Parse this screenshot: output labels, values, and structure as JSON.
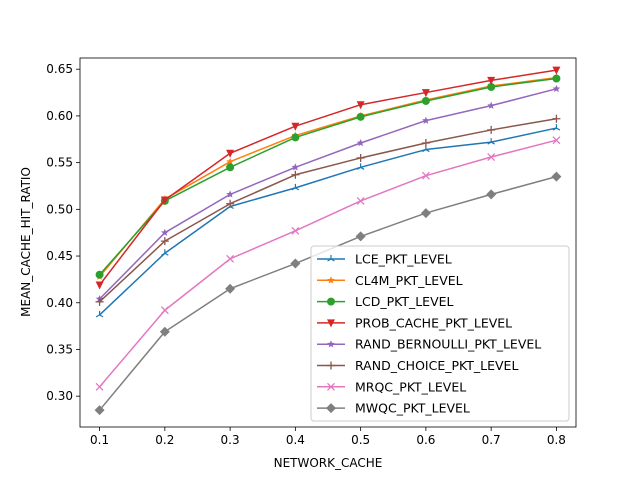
{
  "chart_data": {
    "type": "line",
    "title": "",
    "xlabel": "NETWORK_CACHE",
    "ylabel": "MEAN_CACHE_HIT_RATIO",
    "x": [
      0.1,
      0.2,
      0.3,
      0.4,
      0.5,
      0.6,
      0.7,
      0.8
    ],
    "xlim": [
      0.07,
      0.83
    ],
    "ylim": [
      0.267,
      0.662
    ],
    "xticks": [
      "0.1",
      "0.2",
      "0.3",
      "0.4",
      "0.5",
      "0.6",
      "0.7",
      "0.8"
    ],
    "yticks": [
      "0.30",
      "0.35",
      "0.40",
      "0.45",
      "0.50",
      "0.55",
      "0.60",
      "0.65"
    ],
    "grid": false,
    "legend_position": "lower right",
    "series": [
      {
        "name": "LCE_PKT_LEVEL",
        "color": "#1f77b4",
        "marker": "tri_up",
        "values": [
          0.387,
          0.453,
          0.503,
          0.523,
          0.545,
          0.564,
          0.572,
          0.587
        ]
      },
      {
        "name": "CL4M_PKT_LEVEL",
        "color": "#ff7f0e",
        "marker": "star",
        "values": [
          0.428,
          0.511,
          0.551,
          0.579,
          0.6,
          0.617,
          0.632,
          0.641
        ]
      },
      {
        "name": "LCD_PKT_LEVEL",
        "color": "#2ca02c",
        "marker": "circle",
        "values": [
          0.43,
          0.509,
          0.545,
          0.577,
          0.599,
          0.616,
          0.631,
          0.64
        ]
      },
      {
        "name": "PROB_CACHE_PKT_LEVEL",
        "color": "#d62728",
        "marker": "triangle_down",
        "values": [
          0.419,
          0.51,
          0.56,
          0.589,
          0.612,
          0.625,
          0.638,
          0.649
        ]
      },
      {
        "name": "RAND_BERNOULLI_PKT_LEVEL",
        "color": "#9467bd",
        "marker": "star",
        "values": [
          0.404,
          0.475,
          0.516,
          0.545,
          0.571,
          0.595,
          0.611,
          0.629
        ]
      },
      {
        "name": "RAND_CHOICE_PKT_LEVEL",
        "color": "#8c564b",
        "marker": "plus",
        "values": [
          0.401,
          0.466,
          0.506,
          0.537,
          0.555,
          0.571,
          0.585,
          0.597
        ]
      },
      {
        "name": "MRQC_PKT_LEVEL",
        "color": "#e377c2",
        "marker": "x",
        "values": [
          0.31,
          0.392,
          0.447,
          0.477,
          0.509,
          0.536,
          0.556,
          0.574
        ]
      },
      {
        "name": "MWQC_PKT_LEVEL",
        "color": "#7f7f7f",
        "marker": "diamond",
        "values": [
          0.285,
          0.369,
          0.415,
          0.442,
          0.471,
          0.496,
          0.516,
          0.535
        ]
      }
    ]
  }
}
